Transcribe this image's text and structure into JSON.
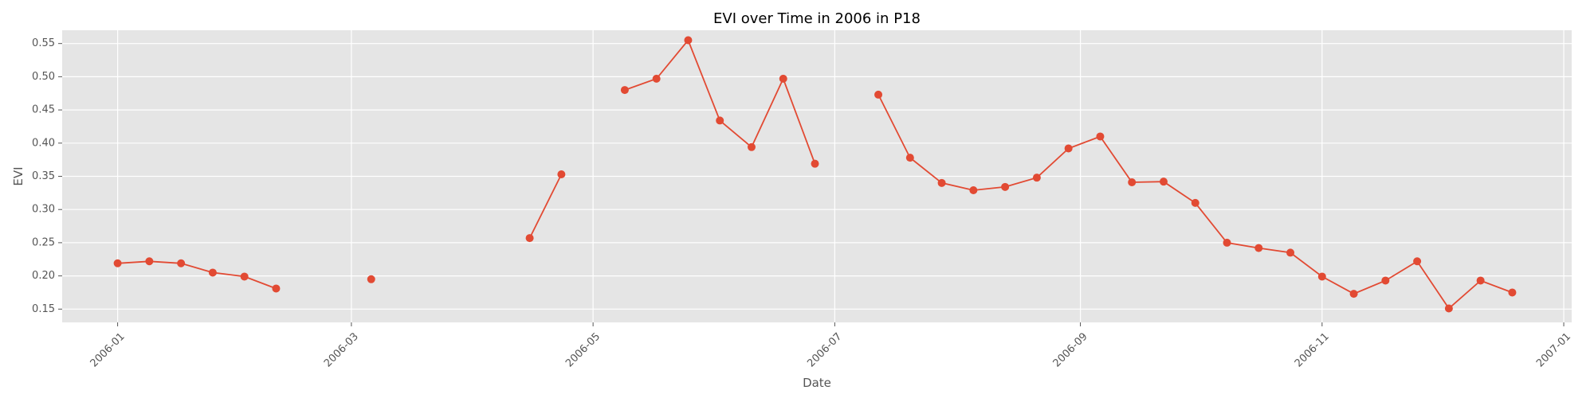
{
  "chart_data": {
    "type": "line",
    "title": "EVI over Time in 2006 in P18",
    "xlabel": "Date",
    "ylabel": "EVI",
    "xlim": [
      "2005-12-18",
      "2007-01-03"
    ],
    "ylim": [
      0.13,
      0.57
    ],
    "grid": true,
    "background": "#e5e5e5",
    "line_color": "#e24a33",
    "x_ticks": [
      "2006-01",
      "2006-03",
      "2006-05",
      "2006-07",
      "2006-09",
      "2006-11",
      "2007-01"
    ],
    "y_ticks": [
      "0.15",
      "0.20",
      "0.25",
      "0.30",
      "0.35",
      "0.40",
      "0.45",
      "0.50",
      "0.55"
    ],
    "segments": [
      [
        {
          "x": "2006-01-01",
          "y": 0.219
        },
        {
          "x": "2006-01-09",
          "y": 0.222
        },
        {
          "x": "2006-01-17",
          "y": 0.219
        },
        {
          "x": "2006-01-25",
          "y": 0.205
        },
        {
          "x": "2006-02-02",
          "y": 0.199
        },
        {
          "x": "2006-02-10",
          "y": 0.181
        }
      ],
      [
        {
          "x": "2006-03-06",
          "y": 0.195
        }
      ],
      [
        {
          "x": "2006-04-15",
          "y": 0.257
        },
        {
          "x": "2006-04-23",
          "y": 0.353
        }
      ],
      [
        {
          "x": "2006-05-09",
          "y": 0.48
        },
        {
          "x": "2006-05-17",
          "y": 0.497
        },
        {
          "x": "2006-05-25",
          "y": 0.555
        },
        {
          "x": "2006-06-02",
          "y": 0.434
        },
        {
          "x": "2006-06-10",
          "y": 0.394
        },
        {
          "x": "2006-06-18",
          "y": 0.497
        },
        {
          "x": "2006-06-26",
          "y": 0.369
        }
      ],
      [
        {
          "x": "2006-07-12",
          "y": 0.473
        },
        {
          "x": "2006-07-20",
          "y": 0.378
        },
        {
          "x": "2006-07-28",
          "y": 0.34
        },
        {
          "x": "2006-08-05",
          "y": 0.329
        },
        {
          "x": "2006-08-13",
          "y": 0.334
        },
        {
          "x": "2006-08-21",
          "y": 0.348
        },
        {
          "x": "2006-08-29",
          "y": 0.392
        },
        {
          "x": "2006-09-06",
          "y": 0.41
        },
        {
          "x": "2006-09-14",
          "y": 0.341
        },
        {
          "x": "2006-09-22",
          "y": 0.342
        },
        {
          "x": "2006-09-30",
          "y": 0.31
        },
        {
          "x": "2006-10-08",
          "y": 0.25
        },
        {
          "x": "2006-10-16",
          "y": 0.242
        },
        {
          "x": "2006-10-24",
          "y": 0.235
        },
        {
          "x": "2006-11-01",
          "y": 0.199
        },
        {
          "x": "2006-11-09",
          "y": 0.173
        },
        {
          "x": "2006-11-17",
          "y": 0.193
        },
        {
          "x": "2006-11-25",
          "y": 0.222
        },
        {
          "x": "2006-12-03",
          "y": 0.151
        },
        {
          "x": "2006-12-11",
          "y": 0.193
        },
        {
          "x": "2006-12-19",
          "y": 0.175
        }
      ]
    ]
  }
}
